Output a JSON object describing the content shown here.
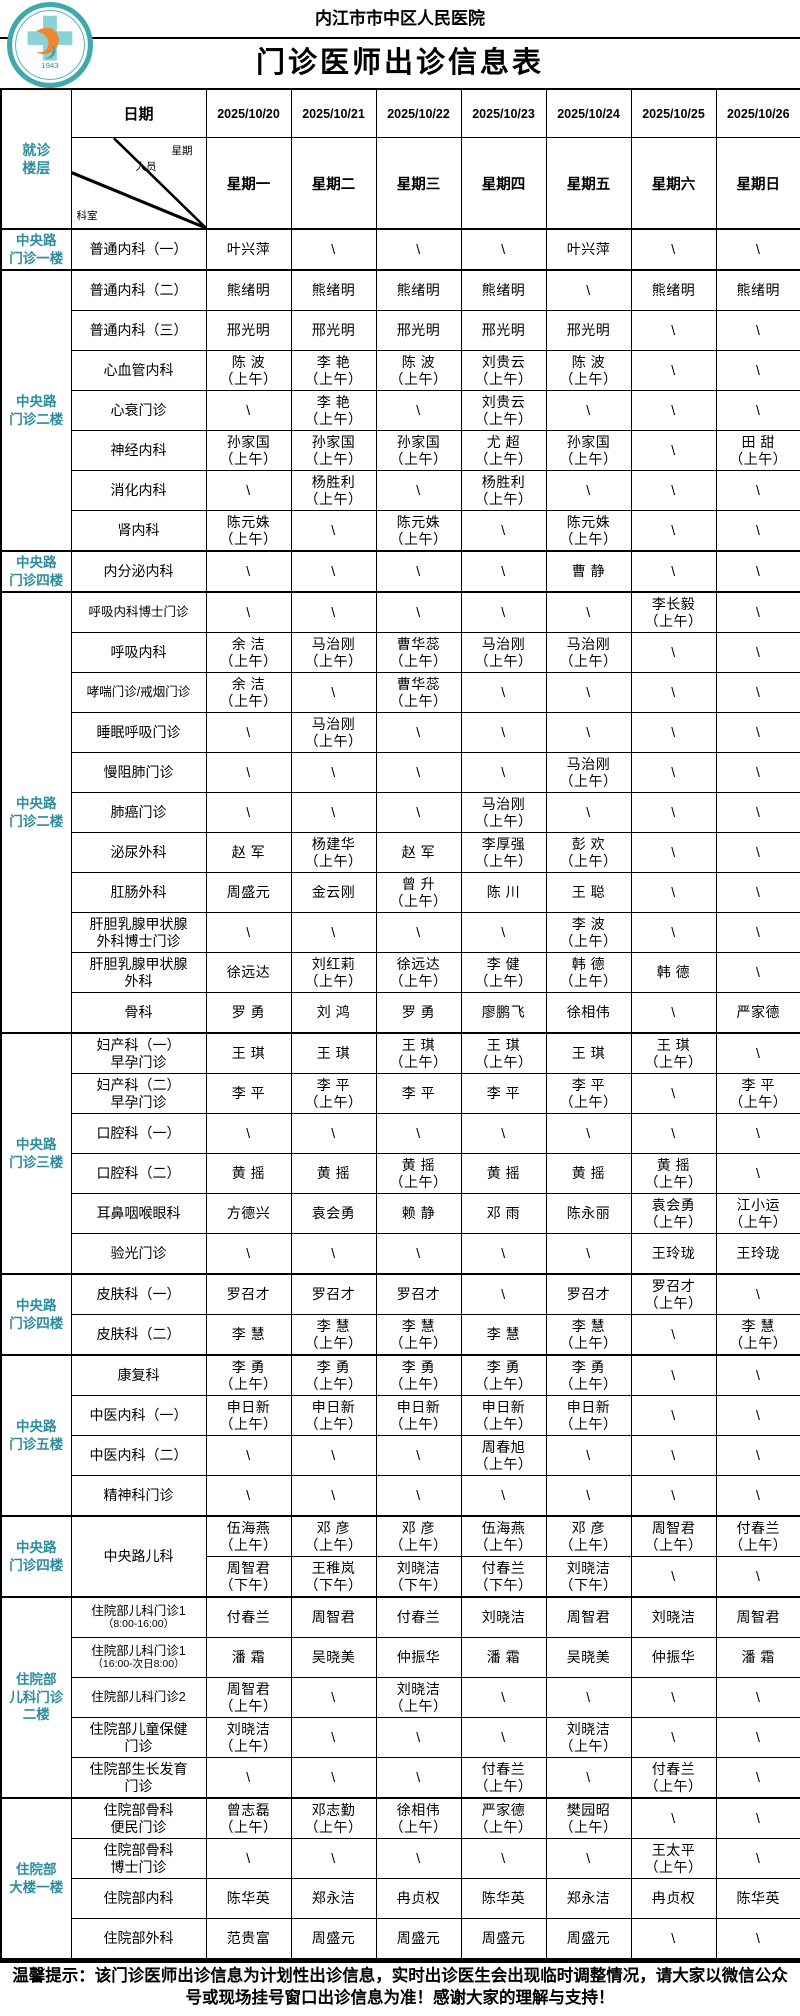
{
  "page": {
    "hospital_name": "内江市市中区人民医院",
    "title": "门诊医师出诊信息表",
    "footer_notice": "温馨提示：该门诊医师出诊信息为计划性出诊信息，实时出诊医生会出现临时调整情况，请大家以微信公众号或现场挂号窗口出诊信息为准！感谢大家的理解与支持！",
    "logo_year": "1943"
  },
  "colors": {
    "accent_teal": "#2E8C9E",
    "logo_teal": "#3FA9AC",
    "logo_light_teal": "#8BD2D8",
    "logo_orange": "#EF8632",
    "border": "#000000"
  },
  "table": {
    "corner_header": "就诊\n楼层",
    "date_label": "日期",
    "diagonal": {
      "top": "星期",
      "middle": "人员",
      "bottom": "科室"
    },
    "dates": [
      "2025/10/20",
      "2025/10/21",
      "2025/10/22",
      "2025/10/23",
      "2025/10/24",
      "2025/10/25",
      "2025/10/26"
    ],
    "weekdays": [
      "星期一",
      "星期二",
      "星期三",
      "星期四",
      "星期五",
      "星期六",
      "星期日"
    ],
    "groups": [
      {
        "floor": "中央路\n门诊一楼",
        "rows": [
          {
            "dept": "普通内科（一）",
            "cells": [
              "叶兴萍",
              "\\",
              "\\",
              "\\",
              "叶兴萍",
              "\\",
              "\\"
            ]
          }
        ]
      },
      {
        "floor": "中央路\n门诊二楼",
        "rows": [
          {
            "dept": "普通内科（二）",
            "cells": [
              "熊绪明",
              "熊绪明",
              "熊绪明",
              "熊绪明",
              "\\",
              "熊绪明",
              "熊绪明"
            ]
          },
          {
            "dept": "普通内科（三）",
            "cells": [
              "邢光明",
              "邢光明",
              "邢光明",
              "邢光明",
              "邢光明",
              "\\",
              "\\"
            ]
          },
          {
            "dept": "心血管内科",
            "cells": [
              "陈 波\n（上午）",
              "李 艳\n（上午）",
              "陈 波\n（上午）",
              "刘贵云\n（上午）",
              "陈 波\n（上午）",
              "\\",
              "\\"
            ]
          },
          {
            "dept": "心衰门诊",
            "cells": [
              "\\",
              "李 艳\n（上午）",
              "\\",
              "刘贵云\n（上午）",
              "\\",
              "\\",
              "\\"
            ]
          },
          {
            "dept": "神经内科",
            "cells": [
              "孙家国\n（上午）",
              "孙家国\n（上午）",
              "孙家国\n（上午）",
              "尤 超\n（上午）",
              "孙家国\n（上午）",
              "\\",
              "田 甜\n（上午）"
            ]
          },
          {
            "dept": "消化内科",
            "cells": [
              "\\",
              "杨胜利\n（上午）",
              "\\",
              "杨胜利\n（上午）",
              "\\",
              "\\",
              "\\"
            ]
          },
          {
            "dept": "肾内科",
            "cells": [
              "陈元姝\n（上午）",
              "\\",
              "陈元姝\n（上午）",
              "\\",
              "陈元姝\n（上午）",
              "\\",
              "\\"
            ]
          }
        ]
      },
      {
        "floor": "中央路\n门诊四楼",
        "rows": [
          {
            "dept": "内分泌内科",
            "cells": [
              "\\",
              "\\",
              "\\",
              "\\",
              "曹 静",
              "\\",
              "\\"
            ]
          }
        ]
      },
      {
        "floor": "中央路\n门诊二楼",
        "rows": [
          {
            "dept": "呼吸内科博士门诊",
            "cells": [
              "\\",
              "\\",
              "\\",
              "\\",
              "\\",
              "李长毅\n（上午）",
              "\\"
            ]
          },
          {
            "dept": "呼吸内科",
            "cells": [
              "余 洁\n（上午）",
              "马治刚\n（上午）",
              "曹华蕊\n（上午）",
              "马治刚\n（上午）",
              "马治刚\n（上午）",
              "\\",
              "\\"
            ]
          },
          {
            "dept": "哮喘门诊/戒烟门诊",
            "cells": [
              "余 洁\n（上午）",
              "\\",
              "曹华蕊\n（上午）",
              "\\",
              "\\",
              "\\",
              "\\"
            ]
          },
          {
            "dept": "睡眠呼吸门诊",
            "cells": [
              "\\",
              "马治刚\n（上午）",
              "\\",
              "\\",
              "\\",
              "\\",
              "\\"
            ]
          },
          {
            "dept": "慢阻肺门诊",
            "cells": [
              "\\",
              "\\",
              "\\",
              "\\",
              "马治刚\n（上午）",
              "\\",
              "\\"
            ]
          },
          {
            "dept": "肺癌门诊",
            "cells": [
              "\\",
              "\\",
              "\\",
              "马治刚\n（上午）",
              "\\",
              "\\",
              "\\"
            ]
          },
          {
            "dept": "泌尿外科",
            "cells": [
              "赵 军",
              "杨建华\n（上午）",
              "赵 军",
              "李厚强\n（上午）",
              "彭 欢\n（上午）",
              "\\",
              "\\"
            ]
          },
          {
            "dept": "肛肠外科",
            "cells": [
              "周盛元",
              "金云刚",
              "曾 升\n（上午）",
              "陈 川",
              "王 聪",
              "\\",
              "\\"
            ]
          },
          {
            "dept": "肝胆乳腺甲状腺\n外科博士门诊",
            "cells": [
              "\\",
              "\\",
              "\\",
              "\\",
              "李 波\n（上午）",
              "\\",
              "\\"
            ]
          },
          {
            "dept": "肝胆乳腺甲状腺\n外科",
            "cells": [
              "徐远达",
              "刘红莉\n（上午）",
              "徐远达\n（上午）",
              "李 健\n（上午）",
              "韩 德\n（上午）",
              "韩 德",
              "\\"
            ]
          },
          {
            "dept": "骨科",
            "cells": [
              "罗 勇",
              "刘 鸿",
              "罗 勇",
              "廖鹏飞",
              "徐相伟",
              "\\",
              "严家德"
            ]
          }
        ]
      },
      {
        "floor": "中央路\n门诊三楼",
        "rows": [
          {
            "dept": "妇产科（一）\n早孕门诊",
            "cells": [
              "王 琪",
              "王 琪",
              "王 琪\n（上午）",
              "王 琪\n（上午）",
              "王 琪",
              "王 琪\n（上午）",
              "\\"
            ]
          },
          {
            "dept": "妇产科（二）\n早孕门诊",
            "cells": [
              "李 平",
              "李 平\n（上午）",
              "李 平",
              "李 平",
              "李 平\n（上午）",
              "\\",
              "李 平\n（上午）"
            ]
          },
          {
            "dept": "口腔科（一）",
            "cells": [
              "\\",
              "\\",
              "\\",
              "\\",
              "\\",
              "\\",
              "\\"
            ]
          },
          {
            "dept": "口腔科（二）",
            "cells": [
              "黄 摇",
              "黄 摇",
              "黄 摇\n（上午）",
              "黄 摇",
              "黄 摇",
              "黄 摇\n（上午）",
              "\\"
            ]
          },
          {
            "dept": "耳鼻咽喉眼科",
            "cells": [
              "方德兴",
              "袁会勇",
              "赖 静",
              "邓 雨",
              "陈永丽",
              "袁会勇\n（上午）",
              "江小运\n（上午）"
            ]
          },
          {
            "dept": "验光门诊",
            "cells": [
              "\\",
              "\\",
              "\\",
              "\\",
              "\\",
              "王玲珑",
              "王玲珑"
            ]
          }
        ]
      },
      {
        "floor": "中央路\n门诊四楼",
        "rows": [
          {
            "dept": "皮肤科（一）",
            "cells": [
              "罗召才",
              "罗召才",
              "罗召才",
              "\\",
              "罗召才",
              "罗召才\n（上午）",
              "\\"
            ]
          },
          {
            "dept": "皮肤科（二）",
            "cells": [
              "李 慧",
              "李 慧\n（上午）",
              "李 慧\n（上午）",
              "李 慧",
              "李 慧\n（上午）",
              "\\",
              "李 慧\n（上午）"
            ]
          }
        ]
      },
      {
        "floor": "中央路\n门诊五楼",
        "rows": [
          {
            "dept": "康复科",
            "cells": [
              "李 勇\n（上午）",
              "李 勇\n（上午）",
              "李 勇\n（上午）",
              "李 勇\n（上午）",
              "李 勇\n（上午）",
              "\\",
              "\\"
            ]
          },
          {
            "dept": "中医内科（一）",
            "cells": [
              "申日新\n（上午）",
              "申日新\n（上午）",
              "申日新\n（上午）",
              "申日新\n（上午）",
              "申日新\n（上午）",
              "\\",
              "\\"
            ]
          },
          {
            "dept": "中医内科（二）",
            "cells": [
              "\\",
              "\\",
              "\\",
              "周春旭\n（上午）",
              "\\",
              "\\",
              "\\"
            ]
          },
          {
            "dept": "精神科门诊",
            "cells": [
              "\\",
              "\\",
              "\\",
              "\\",
              "\\",
              "\\",
              "\\"
            ]
          }
        ]
      },
      {
        "floor": "中央路\n门诊四楼",
        "rows": [
          {
            "dept": "中央路儿科",
            "subrows": [
              [
                "伍海燕\n（上午）",
                "邓 彦\n（上午）",
                "邓 彦\n（上午）",
                "伍海燕\n（上午）",
                "邓 彦\n（上午）",
                "周智君\n（上午）",
                "付春兰\n（上午）"
              ],
              [
                "周智君\n（下午）",
                "王稚岚\n（下午）",
                "刘晓洁\n（下午）",
                "付春兰\n（下午）",
                "刘晓洁\n（下午）",
                "\\",
                "\\"
              ]
            ]
          }
        ]
      },
      {
        "floor": "住院部\n儿科门诊\n二楼",
        "rows": [
          {
            "dept": "住院部儿科门诊1",
            "dept_sub": "（8:00-16:00）",
            "cells": [
              "付春兰",
              "周智君",
              "付春兰",
              "刘晓洁",
              "周智君",
              "刘晓洁",
              "周智君"
            ]
          },
          {
            "dept": "住院部儿科门诊1",
            "dept_sub": "（16:00-次日8:00）",
            "cells": [
              "潘 霜",
              "吴晓美",
              "仲振华",
              "潘 霜",
              "吴晓美",
              "仲振华",
              "潘 霜"
            ]
          },
          {
            "dept": "住院部儿科门诊2",
            "cells": [
              "周智君\n（上午）",
              "\\",
              "刘晓洁\n（上午）",
              "\\",
              "\\",
              "\\",
              "\\"
            ]
          },
          {
            "dept": "住院部儿童保健\n门诊",
            "cells": [
              "刘晓洁\n（上午）",
              "\\",
              "\\",
              "\\",
              "刘晓洁\n（上午）",
              "\\",
              "\\"
            ]
          },
          {
            "dept": "住院部生长发育\n门诊",
            "cells": [
              "\\",
              "\\",
              "\\",
              "付春兰\n（上午）",
              "\\",
              "付春兰\n（上午）",
              "\\"
            ]
          }
        ]
      },
      {
        "floor": "住院部\n大楼一楼",
        "rows": [
          {
            "dept": "住院部骨科\n便民门诊",
            "cells": [
              "曾志磊\n（上午）",
              "邓志勤\n（上午）",
              "徐相伟\n（上午）",
              "严家德\n（上午）",
              "樊园昭\n（上午）",
              "\\",
              "\\"
            ]
          },
          {
            "dept": "住院部骨科\n博士门诊",
            "cells": [
              "\\",
              "\\",
              "\\",
              "\\",
              "\\",
              "王太平\n（上午）",
              "\\"
            ]
          },
          {
            "dept": "住院部内科",
            "cells": [
              "陈华英",
              "郑永洁",
              "冉贞权",
              "陈华英",
              "郑永洁",
              "冉贞权",
              "陈华英"
            ]
          },
          {
            "dept": "住院部外科",
            "cells": [
              "范贵富",
              "周盛元",
              "周盛元",
              "周盛元",
              "周盛元",
              "\\",
              "\\"
            ]
          }
        ]
      }
    ]
  }
}
